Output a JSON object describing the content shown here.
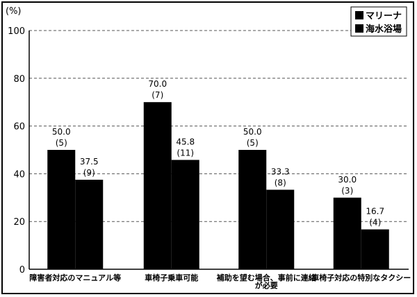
{
  "chart_data": {
    "type": "bar",
    "unit_label": "(%)",
    "categories": [
      [
        "障害者対応のマニュアル等"
      ],
      [
        "車椅子乗車可能"
      ],
      [
        "補助を望む場合、事前に連絡",
        "が必要"
      ],
      [
        "車椅子対応の特別なタクシー"
      ]
    ],
    "series": [
      {
        "name": "マリーナ",
        "values": [
          50.0,
          70.0,
          50.0,
          30.0
        ],
        "labels": [
          "50.0",
          "70.0",
          "50.0",
          "30.0"
        ],
        "counts": [
          "(5)",
          "(7)",
          "(5)",
          "(3)"
        ]
      },
      {
        "name": "海水浴場",
        "values": [
          37.5,
          45.8,
          33.3,
          16.7
        ],
        "labels": [
          "37.5",
          "45.8",
          "33.3",
          "16.7"
        ],
        "counts": [
          "(9)",
          "(11)",
          "(8)",
          "(4)"
        ]
      }
    ],
    "ylim": [
      0,
      100
    ],
    "yticks": [
      "0",
      "20",
      "40",
      "60",
      "80",
      "100"
    ],
    "grid": "dashed horizontal",
    "legend": "top-right",
    "bar_color": "#000000"
  }
}
